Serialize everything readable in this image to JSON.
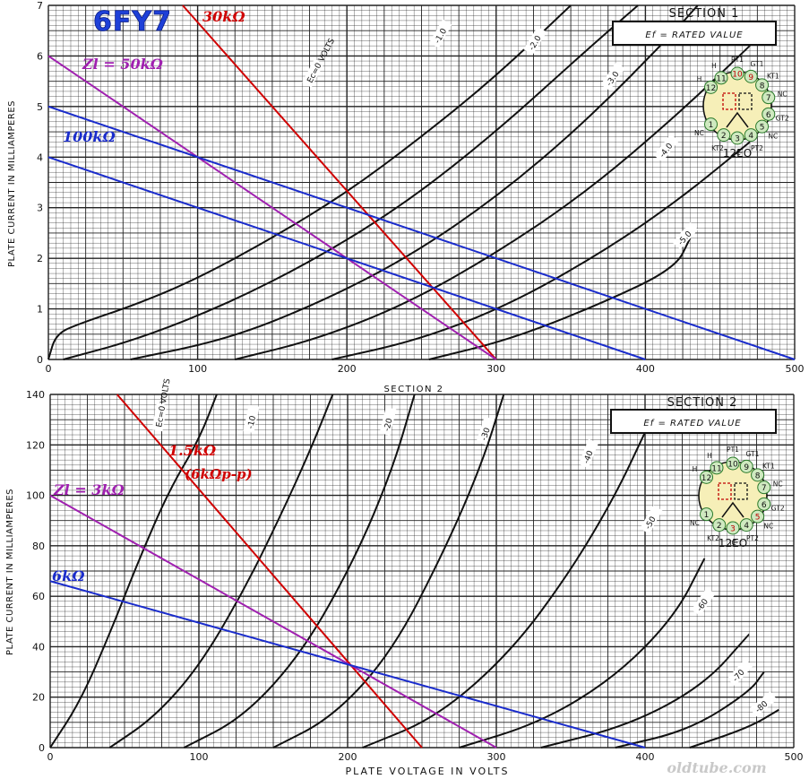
{
  "tube_title": "6FY7",
  "watermark": "oldtube.com",
  "colors": {
    "black": "#111111",
    "red": "#d00000",
    "magenta": "#a020b0",
    "blue": "#1a2ccc",
    "title_blue": "#1e40d8"
  },
  "chart_data": [
    {
      "type": "line",
      "section_label": "SECTION 1",
      "ef_label": "Ef = RATED VALUE",
      "tube_base": "12EO",
      "ylabel": "PLATE CURRENT IN MILLIAMPERES",
      "xlabel": "SECTION 2",
      "xlim": [
        0,
        500
      ],
      "ylim": [
        0,
        7
      ],
      "x_ticks": [
        0,
        100,
        200,
        300,
        400,
        500
      ],
      "y_ticks": [
        0,
        1,
        2,
        3,
        4,
        5,
        6,
        7
      ],
      "grid": true,
      "pin_labels": [
        "NC",
        "KT2",
        "IC",
        "PT2",
        "NC",
        "GT2",
        "NC",
        "KT1",
        "GT1",
        "PT1",
        "H",
        "H"
      ],
      "pin_numbers": [
        "1",
        "2",
        "3",
        "4",
        "5",
        "6",
        "7",
        "8",
        "9",
        "10",
        "11",
        "12"
      ],
      "curve_labels": [
        "Ec=0 VOLTS",
        "-1.0",
        "-2.0",
        "-3.0",
        "-4.0",
        "-5.0"
      ],
      "series": [
        {
          "label": "Ec=0 VOLTS",
          "points": [
            [
              0,
              0
            ],
            [
              5,
              0.5
            ],
            [
              20,
              0.7
            ],
            [
              60,
              1.1
            ],
            [
              100,
              1.6
            ],
            [
              150,
              2.4
            ],
            [
              200,
              3.3
            ],
            [
              250,
              4.4
            ],
            [
              300,
              5.6
            ],
            [
              350,
              7.0
            ]
          ]
        },
        {
          "label": "-1.0",
          "points": [
            [
              10,
              0
            ],
            [
              60,
              0.4
            ],
            [
              120,
              1.1
            ],
            [
              180,
              2.0
            ],
            [
              240,
              3.1
            ],
            [
              300,
              4.5
            ],
            [
              360,
              6.1
            ],
            [
              395,
              7.0
            ]
          ]
        },
        {
          "label": "-2.0",
          "points": [
            [
              55,
              0
            ],
            [
              120,
              0.4
            ],
            [
              180,
              1.1
            ],
            [
              240,
              2.0
            ],
            [
              300,
              3.2
            ],
            [
              360,
              4.7
            ],
            [
              420,
              6.5
            ],
            [
              435,
              7.0
            ]
          ]
        },
        {
          "label": "-3.0",
          "points": [
            [
              125,
              0
            ],
            [
              180,
              0.4
            ],
            [
              240,
              1.1
            ],
            [
              300,
              2.1
            ],
            [
              360,
              3.3
            ],
            [
              420,
              4.8
            ],
            [
              470,
              6.2
            ]
          ]
        },
        {
          "label": "-4.0",
          "points": [
            [
              190,
              0
            ],
            [
              250,
              0.4
            ],
            [
              310,
              1.1
            ],
            [
              370,
              2.1
            ],
            [
              420,
              3.1
            ],
            [
              470,
              4.3
            ]
          ]
        },
        {
          "label": "-5.0",
          "points": [
            [
              255,
              0
            ],
            [
              310,
              0.4
            ],
            [
              370,
              1.1
            ],
            [
              420,
              1.8
            ],
            [
              430,
              2.4
            ]
          ]
        }
      ],
      "load_lines": [
        {
          "name": "30kΩ",
          "color_key": "red",
          "points": [
            [
              90,
              7
            ],
            [
              300,
              0
            ]
          ]
        },
        {
          "name": "Zl = 50kΩ",
          "color_key": "magenta",
          "points": [
            [
              0,
              6
            ],
            [
              300,
              0
            ]
          ]
        },
        {
          "name": "100kΩ",
          "color_key": "blue",
          "points": [
            [
              0,
              5
            ],
            [
              500,
              0
            ]
          ]
        },
        {
          "name": "",
          "color_key": "blue",
          "points": [
            [
              0,
              4
            ],
            [
              400,
              0
            ]
          ]
        }
      ]
    },
    {
      "type": "line",
      "section_label": "SECTION 2",
      "ef_label": "Ef = RATED VALUE",
      "tube_base": "12EO",
      "ylabel": "PLATE CURRENT IN MILLIAMPERES",
      "xlabel": "PLATE VOLTAGE IN VOLTS",
      "xlim": [
        0,
        500
      ],
      "ylim": [
        0,
        140
      ],
      "x_ticks": [
        0,
        100,
        200,
        300,
        400,
        500
      ],
      "y_ticks": [
        0,
        20,
        40,
        60,
        80,
        100,
        120,
        140
      ],
      "grid": true,
      "pin_labels": [
        "NC",
        "KT2",
        "IC",
        "PT2",
        "NC",
        "GT2",
        "NC",
        "KT1",
        "GT1",
        "PT1",
        "H",
        "H"
      ],
      "pin_numbers": [
        "1",
        "2",
        "3",
        "4",
        "5",
        "6",
        "7",
        "8",
        "9",
        "10",
        "11",
        "12"
      ],
      "curve_labels": [
        "Ec=0 VOLTS",
        "-10",
        "-20",
        "-30",
        "-40",
        "-50",
        "-60",
        "-70",
        "-80"
      ],
      "series": [
        {
          "label": "Ec=0 VOLTS",
          "points": [
            [
              0,
              0
            ],
            [
              20,
              18
            ],
            [
              40,
              45
            ],
            [
              60,
              75
            ],
            [
              80,
              102
            ],
            [
              100,
              122
            ],
            [
              112,
              140
            ]
          ]
        },
        {
          "label": "-10",
          "points": [
            [
              40,
              0
            ],
            [
              70,
              12
            ],
            [
              100,
              32
            ],
            [
              130,
              62
            ],
            [
              155,
              92
            ],
            [
              175,
              118
            ],
            [
              190,
              140
            ]
          ]
        },
        {
          "label": "-20",
          "points": [
            [
              90,
              0
            ],
            [
              130,
              12
            ],
            [
              170,
              38
            ],
            [
              205,
              75
            ],
            [
              230,
              110
            ],
            [
              245,
              140
            ]
          ]
        },
        {
          "label": "-30",
          "points": [
            [
              150,
              0
            ],
            [
              190,
              12
            ],
            [
              230,
              38
            ],
            [
              265,
              78
            ],
            [
              290,
              112
            ],
            [
              305,
              140
            ]
          ]
        },
        {
          "label": "-40",
          "points": [
            [
              210,
              0
            ],
            [
              260,
              12
            ],
            [
              310,
              38
            ],
            [
              350,
              70
            ],
            [
              380,
              100
            ],
            [
              400,
              125
            ]
          ]
        },
        {
          "label": "-50",
          "points": [
            [
              275,
              0
            ],
            [
              330,
              10
            ],
            [
              380,
              28
            ],
            [
              420,
              52
            ],
            [
              440,
              75
            ]
          ]
        },
        {
          "label": "-60",
          "points": [
            [
              330,
              0
            ],
            [
              390,
              9
            ],
            [
              440,
              25
            ],
            [
              470,
              45
            ]
          ]
        },
        {
          "label": "-70",
          "points": [
            [
              380,
              0
            ],
            [
              430,
              7
            ],
            [
              470,
              22
            ],
            [
              480,
              30
            ]
          ]
        },
        {
          "label": "-80",
          "points": [
            [
              430,
              0
            ],
            [
              470,
              8
            ],
            [
              490,
              15
            ]
          ]
        }
      ],
      "load_lines": [
        {
          "name": "1.5kΩ",
          "sublabel": "(6kΩp-p)",
          "color_key": "red",
          "points": [
            [
              45,
              140
            ],
            [
              250,
              0
            ]
          ]
        },
        {
          "name": "Zl = 3kΩ",
          "color_key": "magenta",
          "points": [
            [
              0,
              100
            ],
            [
              300,
              0
            ]
          ]
        },
        {
          "name": "6kΩ",
          "color_key": "blue",
          "points": [
            [
              0,
              66
            ],
            [
              400,
              0
            ]
          ]
        }
      ]
    }
  ]
}
